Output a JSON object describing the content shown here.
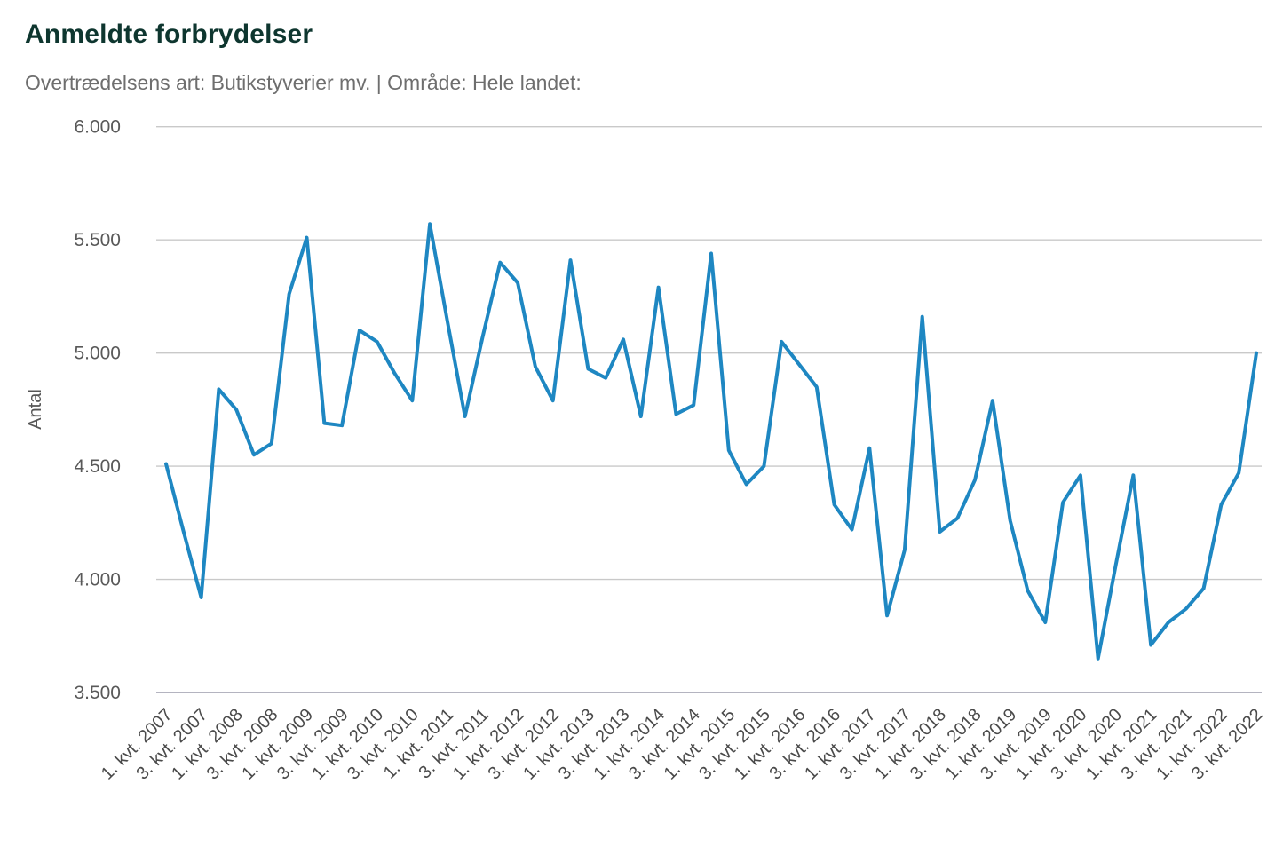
{
  "header": {
    "title": "Anmeldte forbrydelser",
    "subtitle": "Overtrædelsens art: Butikstyverier mv. | Område: Hele landet:"
  },
  "chart_data": {
    "type": "line",
    "title": "Anmeldte forbrydelser",
    "subtitle": "Overtrædelsens art: Butikstyverier mv. | Område: Hele landet:",
    "xlabel": "",
    "ylabel": "Antal",
    "ylim": [
      3500,
      6000
    ],
    "y_ticks": [
      3500,
      4000,
      4500,
      5000,
      5500,
      6000
    ],
    "y_tick_labels": [
      "3.500",
      "4.000",
      "4.500",
      "5.000",
      "5.500",
      "6.000"
    ],
    "grid": true,
    "legend_position": "none",
    "line_color": "#1e87c2",
    "grid_color": "#c9c9c9",
    "axis_line_color": "#b4b4c0",
    "x_tick_step": 2,
    "x": [
      "1. kvt. 2007",
      "2. kvt. 2007",
      "3. kvt. 2007",
      "4. kvt. 2007",
      "1. kvt. 2008",
      "2. kvt. 2008",
      "3. kvt. 2008",
      "4. kvt. 2008",
      "1. kvt. 2009",
      "2. kvt. 2009",
      "3. kvt. 2009",
      "4. kvt. 2009",
      "1. kvt. 2010",
      "2. kvt. 2010",
      "3. kvt. 2010",
      "4. kvt. 2010",
      "1. kvt. 2011",
      "2. kvt. 2011",
      "3. kvt. 2011",
      "4. kvt. 2011",
      "1. kvt. 2012",
      "2. kvt. 2012",
      "3. kvt. 2012",
      "4. kvt. 2012",
      "1. kvt. 2013",
      "2. kvt. 2013",
      "3. kvt. 2013",
      "4. kvt. 2013",
      "1. kvt. 2014",
      "2. kvt. 2014",
      "3. kvt. 2014",
      "4. kvt. 2014",
      "1. kvt. 2015",
      "2. kvt. 2015",
      "3. kvt. 2015",
      "4. kvt. 2015",
      "1. kvt. 2016",
      "2. kvt. 2016",
      "3. kvt. 2016",
      "4. kvt. 2016",
      "1. kvt. 2017",
      "2. kvt. 2017",
      "3. kvt. 2017",
      "4. kvt. 2017",
      "1. kvt. 2018",
      "2. kvt. 2018",
      "3. kvt. 2018",
      "4. kvt. 2018",
      "1. kvt. 2019",
      "2. kvt. 2019",
      "3. kvt. 2019",
      "4. kvt. 2019",
      "1. kvt. 2020",
      "2. kvt. 2020",
      "3. kvt. 2020",
      "4. kvt. 2020",
      "1. kvt. 2021",
      "2. kvt. 2021",
      "3. kvt. 2021",
      "4. kvt. 2021",
      "1. kvt. 2022",
      "2. kvt. 2022",
      "3. kvt. 2022"
    ],
    "values": [
      4510,
      4210,
      3920,
      4840,
      4750,
      4550,
      4600,
      5260,
      5510,
      4690,
      4680,
      5100,
      5050,
      4910,
      4790,
      5570,
      5140,
      4720,
      5070,
      5400,
      5310,
      4940,
      4790,
      5410,
      4930,
      4890,
      5060,
      4720,
      5290,
      4730,
      4770,
      5440,
      4570,
      4420,
      4500,
      5050,
      4950,
      4850,
      4330,
      4220,
      4580,
      3840,
      4130,
      5160,
      4210,
      4270,
      4440,
      4790,
      4260,
      3950,
      3810,
      4340,
      4460,
      3650,
      4060,
      4460,
      3710,
      3810,
      3870,
      3960,
      4330,
      4470,
      5000
    ]
  },
  "colors": {
    "title": "#0e362f",
    "subtitle": "#6e6e6e",
    "y_tick_label": "#595959",
    "x_tick_label": "#4a4a4a",
    "axis_title": "#555555"
  }
}
